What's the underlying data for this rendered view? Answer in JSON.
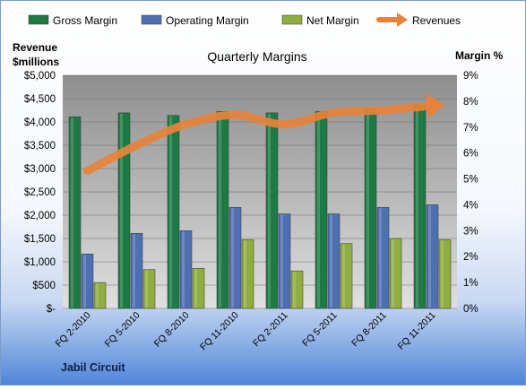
{
  "chart_data": {
    "type": "bar",
    "title": "Quarterly Margins",
    "categories": [
      "FQ 2-2010",
      "FQ 5-2010",
      "FQ 8-2010",
      "FQ 11-2010",
      "FQ 2-2011",
      "FQ 5-2011",
      "FQ 8-2011",
      "FQ 11-2011"
    ],
    "series": [
      {
        "name": "Gross Margin",
        "kind": "bar",
        "axis": "right",
        "color": "#1E7A45",
        "values": [
          7.4,
          7.55,
          7.45,
          7.6,
          7.55,
          7.6,
          7.7,
          7.85
        ]
      },
      {
        "name": "Operating Margin",
        "kind": "bar",
        "axis": "right",
        "color": "#4F6FB3",
        "values": [
          2.1,
          2.9,
          3.0,
          3.9,
          3.65,
          3.65,
          3.9,
          4.0
        ]
      },
      {
        "name": "Net Margin",
        "kind": "bar",
        "axis": "right",
        "color": "#8FAE3F",
        "values": [
          1.0,
          1.5,
          1.55,
          2.65,
          1.45,
          2.5,
          2.7,
          2.65
        ]
      },
      {
        "name": "Revenues",
        "kind": "line-arrow",
        "axis": "left",
        "color": "#E8823A",
        "values": [
          2950,
          3500,
          3950,
          4150,
          3950,
          4200,
          4250,
          4350
        ]
      }
    ],
    "left_axis": {
      "title_lines": [
        "Revenue",
        "$millions"
      ],
      "min": 0,
      "max": 5000,
      "step": 500,
      "tick_labels": [
        "$-",
        "$500",
        "$1,000",
        "$1,500",
        "$2,000",
        "$2,500",
        "$3,000",
        "$3,500",
        "$4,000",
        "$4,500",
        "$5,000"
      ]
    },
    "right_axis": {
      "title": "Margin %",
      "min": 0,
      "max": 9,
      "step": 1,
      "tick_labels": [
        "0%",
        "1%",
        "2%",
        "3%",
        "4%",
        "5%",
        "6%",
        "7%",
        "8%",
        "9%"
      ]
    },
    "legend": {
      "position": "top"
    },
    "grid": true,
    "footer": "Jabil Circuit"
  }
}
